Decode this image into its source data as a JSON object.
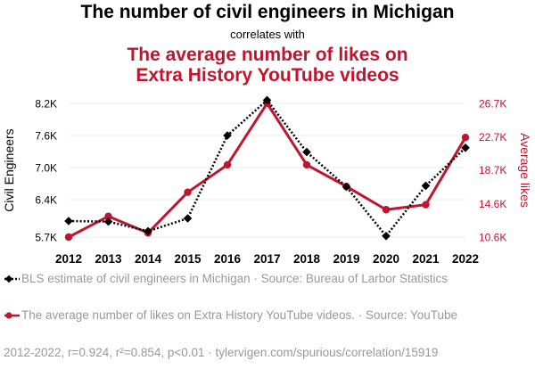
{
  "header": {
    "title": "The number of civil engineers in Michigan",
    "subtitle": "correlates with",
    "title2_line1": "The average number of likes on",
    "title2_line2": "Extra History YouTube videos"
  },
  "colors": {
    "series1": "#000000",
    "series2": "#c0152f",
    "muted": "#999999"
  },
  "chart_data": {
    "type": "line",
    "x": [
      2012,
      2013,
      2014,
      2015,
      2016,
      2017,
      2018,
      2019,
      2020,
      2021,
      2022
    ],
    "series": [
      {
        "name": "Civil Engineers",
        "axis": "left",
        "values": [
          6000,
          5990,
          5810,
          6050,
          7600,
          8260,
          7290,
          6640,
          5720,
          6660,
          7370
        ]
      },
      {
        "name": "Average likes",
        "axis": "right",
        "values": [
          10600,
          13100,
          11100,
          16000,
          19300,
          26700,
          19300,
          16700,
          13900,
          14500,
          22600
        ]
      }
    ],
    "ylabel_left": "Civil Engineers",
    "ylabel_right": "Average likes",
    "left_ticks": [
      "8.2K",
      "7.6K",
      "7.0K",
      "6.4K",
      "5.7K"
    ],
    "left_tick_values": [
      8200,
      7600,
      7000,
      6400,
      5700
    ],
    "right_ticks": [
      "26.7K",
      "22.7K",
      "18.7K",
      "14.6K",
      "10.6K"
    ],
    "right_tick_values": [
      26700,
      22700,
      18700,
      14600,
      10600
    ],
    "x_ticks": [
      "2012",
      "2013",
      "2014",
      "2015",
      "2016",
      "2017",
      "2018",
      "2019",
      "2020",
      "2021",
      "2022"
    ]
  },
  "legend": {
    "series1": "BLS estimate of civil engineers in Michigan · Source: Bureau of Larbor Statistics",
    "series2": "The average number of likes on Extra History YouTube videos. · Source: YouTube"
  },
  "footer": "2012-2022, r=0.924, r²=0.854, p<0.01 · tylervigen.com/spurious/correlation/15919"
}
